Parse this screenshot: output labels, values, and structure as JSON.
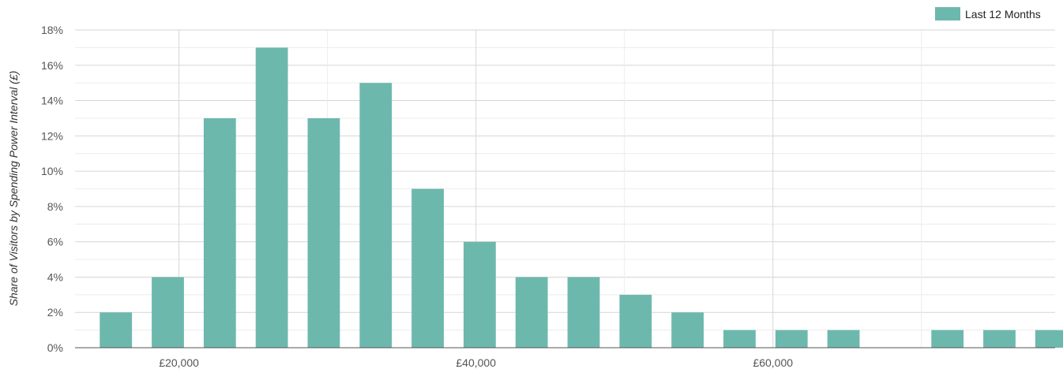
{
  "chart_data": {
    "type": "bar",
    "ylabel": "Share of Visitors by Spending Power Interval (£)",
    "xlabel": "",
    "legend": {
      "position": "top-right",
      "entries": [
        "Last 12 Months"
      ]
    },
    "x_range": [
      13000,
      79000
    ],
    "ylim": [
      0,
      18
    ],
    "y_ticks": [
      "0%",
      "2%",
      "4%",
      "6%",
      "8%",
      "10%",
      "12%",
      "14%",
      "16%",
      "18%"
    ],
    "y_tick_values": [
      0,
      2,
      4,
      6,
      8,
      10,
      12,
      14,
      16,
      18
    ],
    "x_ticks": [
      "£20,000",
      "£40,000",
      "£60,000"
    ],
    "x_tick_values": [
      20000,
      40000,
      60000
    ],
    "bin_width": 3500,
    "series": [
      {
        "name": "Last 12 Months",
        "color": "#6db8ad",
        "x": [
          15750,
          19250,
          22750,
          26250,
          29750,
          33250,
          36750,
          40250,
          43750,
          47250,
          50750,
          54250,
          57750,
          61250,
          64750,
          68250,
          71750,
          75250,
          78750
        ],
        "values": [
          2,
          4,
          13,
          17,
          13,
          15,
          9,
          6,
          4,
          4,
          3,
          2,
          1,
          1,
          1,
          0,
          1,
          1,
          1
        ]
      }
    ],
    "grid": true
  }
}
